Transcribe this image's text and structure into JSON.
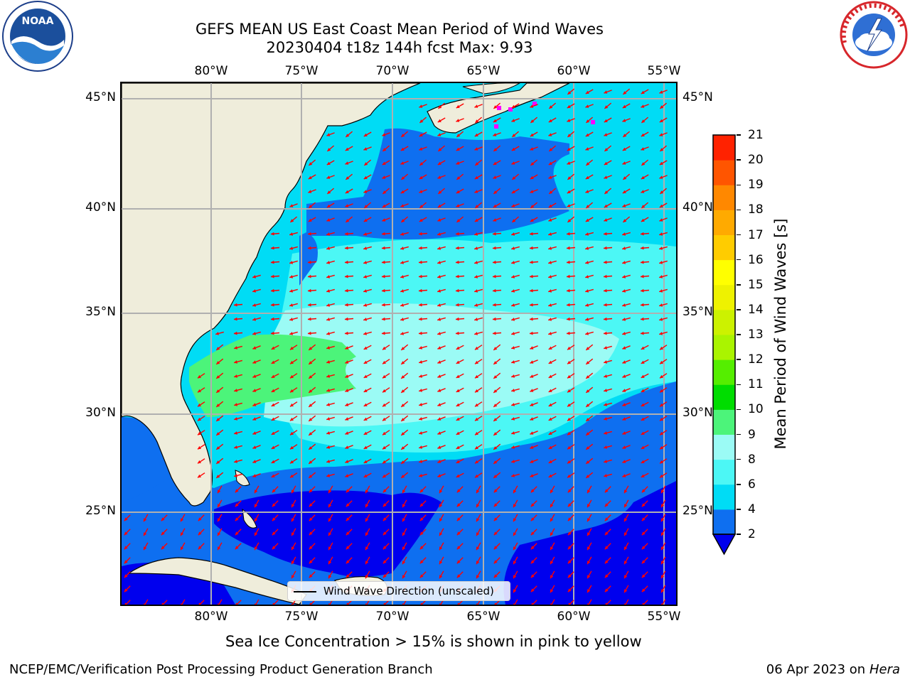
{
  "header": {
    "title_line1": "GEFS MEAN US East Coast Mean Period of Wind Waves",
    "title_line2": "20230404 t18z 144h fcst   Max: 9.93"
  },
  "logos": {
    "left": {
      "text": "NOAA",
      "ring_text": "NATIONAL OCEANIC AND ATMOSPHERIC ADMINISTRATION • U.S. DEPARTMENT OF COMMERCE"
    },
    "right": {
      "ring_text": "NATIONAL WEATHER SERVICE"
    }
  },
  "axes": {
    "lon_labels": [
      "80°W",
      "75°W",
      "70°W",
      "65°W",
      "60°W",
      "55°W"
    ],
    "lat_labels": [
      "45°N",
      "40°N",
      "35°N",
      "30°N",
      "25°N"
    ]
  },
  "legend": {
    "label": "Wind Wave Direction (unscaled)"
  },
  "colorbar": {
    "label": "Mean Period of Wind Waves [s]",
    "ticks": [
      "2",
      "4",
      "6",
      "8",
      "9",
      "10",
      "11",
      "12",
      "13",
      "14",
      "15",
      "16",
      "17",
      "18",
      "19",
      "20",
      "21"
    ],
    "colors": [
      "#0e6ff0",
      "#00dcf5",
      "#4cf7f5",
      "#9bfbf5",
      "#4cf47a",
      "#00dd00",
      "#55ee00",
      "#aaf400",
      "#ccf200",
      "#eef200",
      "#ffff00",
      "#ffcc00",
      "#ffaa00",
      "#ff8800",
      "#ff5500",
      "#ff2200",
      "#ff0000"
    ],
    "extend_color": "#0000ee"
  },
  "map_colors": {
    "land": "#efeddb",
    "ocean_2_4": "#0e6ff0",
    "ocean_4_6": "#00dcf5",
    "ocean_6_8": "#4cf7f5",
    "ocean_8_9": "#9bfbf5",
    "ocean_9_10": "#4cf47a",
    "ocean_lt_2": "#0000ee",
    "grid": "#b0b0b0",
    "arrow": "#ff0000",
    "ice": "#ff00ff"
  },
  "notes": {
    "sea_ice": "Sea Ice Concentration > 15% is shown in pink to yellow"
  },
  "footer": {
    "left": "NCEP/EMC/Verification Post Processing Product Generation Branch",
    "right_date": "06 Apr 2023 on ",
    "right_host": "Hera"
  }
}
